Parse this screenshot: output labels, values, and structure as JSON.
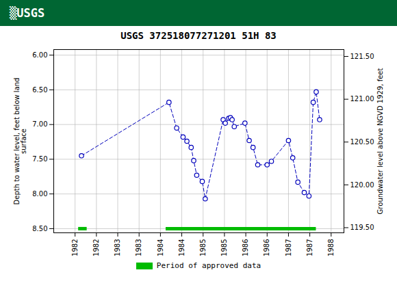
{
  "chart_data": {
    "type": "line",
    "title": "USGS 372518077271201 51H 83",
    "annotations": [
      "▒USGS"
    ],
    "ylabel": "Depth to water level, feet below land\nsurface",
    "y2label": "Groundwater level above NGVD 1929, feet",
    "xlim": [
      1981.5,
      1988.3
    ],
    "xticks": [
      1982,
      {
        "value": 1982.5,
        "label": "1982"
      },
      1983,
      {
        "value": 1983.5,
        "label": "1983"
      },
      1984,
      {
        "value": 1984.5,
        "label": "1984"
      },
      1985,
      {
        "value": 1985.5,
        "label": "1985"
      },
      1986,
      {
        "value": 1986.5,
        "label": "1986"
      },
      1987,
      {
        "value": 1987.5,
        "label": "1987"
      },
      1988
    ],
    "ylim": [
      8.56,
      5.92
    ],
    "yticks": [
      {
        "value": 6,
        "label": "6.00"
      },
      {
        "value": 6.5,
        "label": "6.50"
      },
      {
        "value": 7,
        "label": "7.00"
      },
      {
        "value": 7.5,
        "label": "7.50"
      },
      {
        "value": 8,
        "label": "8.00"
      },
      {
        "value": 8.5,
        "label": "8.50"
      }
    ],
    "y2lim": [
      119.44,
      121.58
    ],
    "y2ticks": [
      {
        "value": 119.5,
        "label": "119.50"
      },
      {
        "value": 120,
        "label": "120.00"
      },
      {
        "value": 120.5,
        "label": "120.50"
      },
      {
        "value": 121,
        "label": "121.00"
      },
      {
        "value": 121.5,
        "label": "121.50"
      }
    ],
    "grid": true,
    "legend": "bottom",
    "series": [
      {
        "type": "line",
        "color": "#0000bb",
        "line_style": "dashed",
        "marker": "circle",
        "x": [
          1982.15,
          1984.2,
          1984.38,
          1984.53,
          1984.62,
          1984.72,
          1984.78,
          1984.85,
          1984.98,
          1985.05,
          1985.47,
          1985.52,
          1985.6,
          1985.64,
          1985.68,
          1985.73,
          1985.98,
          1986.08,
          1986.17,
          1986.28,
          1986.5,
          1986.6,
          1987.0,
          1987.1,
          1987.22,
          1987.37,
          1987.48,
          1987.58,
          1987.65,
          1987.73
        ],
        "values": [
          7.45,
          6.68,
          7.05,
          7.18,
          7.24,
          7.33,
          7.52,
          7.73,
          7.82,
          8.07,
          6.93,
          6.98,
          6.91,
          6.9,
          6.93,
          7.03,
          6.98,
          7.23,
          7.33,
          7.58,
          7.58,
          7.53,
          7.23,
          7.48,
          7.83,
          7.98,
          8.03,
          6.68,
          6.53,
          6.93
        ]
      },
      {
        "name": "Period of approved data",
        "type": "bar",
        "orientation": "horizontal",
        "color": "#00bb00",
        "x_start": [
          1982.08,
          1984.13
        ],
        "x_end": [
          1982.28,
          1987.65
        ],
        "values": [
          8.5,
          8.5
        ]
      }
    ]
  }
}
